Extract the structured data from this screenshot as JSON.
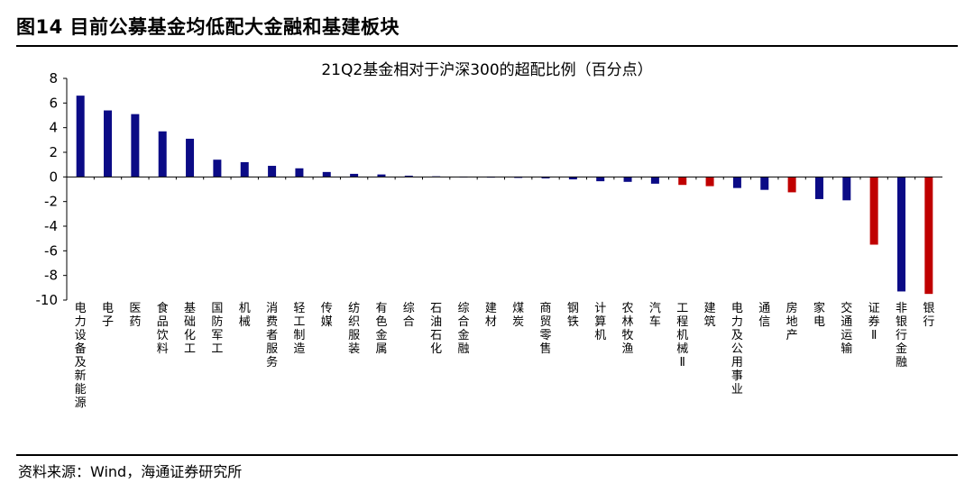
{
  "figure": {
    "title": "图14 目前公募基金均低配大金融和基建板块",
    "source": "资料来源：Wind，海通证券研究所"
  },
  "chart_data": {
    "type": "bar",
    "title": "21Q2基金相对于沪深300的超配比例（百分点）",
    "xlabel": "",
    "ylabel": "",
    "ylim": [
      -10,
      8
    ],
    "yticks": [
      8,
      6,
      4,
      2,
      0,
      -2,
      -4,
      -6,
      -8,
      -10
    ],
    "grid": false,
    "legend": "none",
    "colors": {
      "default": "#0b0b86",
      "highlight": "#c00000"
    },
    "categories": [
      "电力设备及新能源",
      "电子",
      "医药",
      "食品饮料",
      "基础化工",
      "国防军工",
      "机械",
      "消费者服务",
      "轻工制造",
      "传媒",
      "纺织服装",
      "有色金属",
      "综合",
      "石油石化",
      "综合金融",
      "建材",
      "煤炭",
      "商贸零售",
      "钢铁",
      "计算机",
      "农林牧渔",
      "汽车",
      "工程机械Ⅱ",
      "建筑",
      "电力及公用事业",
      "通信",
      "房地产",
      "家电",
      "交通运输",
      "证券Ⅱ",
      "非银行金融",
      "银行"
    ],
    "values": [
      6.6,
      5.4,
      5.1,
      3.7,
      3.1,
      1.4,
      1.2,
      0.9,
      0.7,
      0.4,
      0.25,
      0.2,
      0.1,
      0.05,
      0.02,
      -0.05,
      -0.08,
      -0.12,
      -0.2,
      -0.35,
      -0.4,
      -0.55,
      -0.65,
      -0.75,
      -0.9,
      -1.05,
      -1.25,
      -1.8,
      -1.9,
      -5.5,
      -9.3,
      -9.5
    ],
    "highlighted": [
      "工程机械Ⅱ",
      "建筑",
      "房地产",
      "证券Ⅱ",
      "银行"
    ]
  }
}
